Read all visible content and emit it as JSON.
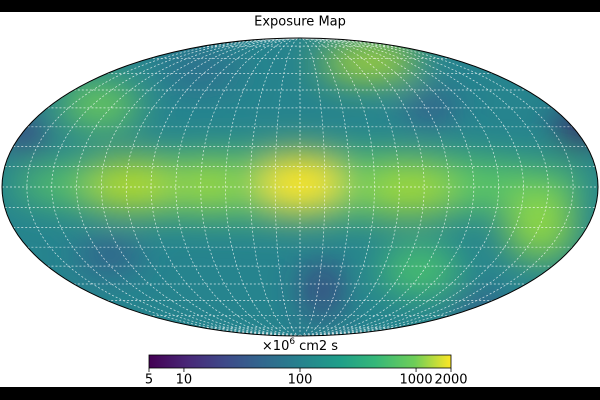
{
  "chart_data": {
    "type": "map",
    "projection": "mollweide",
    "title": "Exposure Map",
    "graticule": true,
    "colormap": "viridis",
    "colorbar": {
      "label": {
        "base": "×10",
        "exponent": "6",
        "unit": "cm2 s"
      },
      "scale": "log",
      "clim": [
        5,
        2000
      ],
      "ticks": [
        5,
        10,
        100,
        1000,
        2000
      ]
    }
  }
}
